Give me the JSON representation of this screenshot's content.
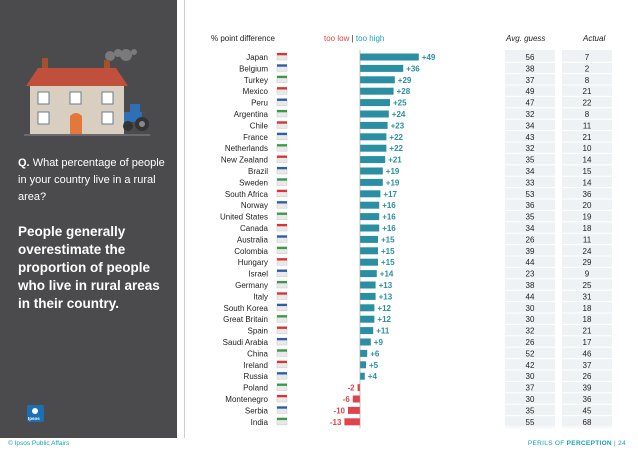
{
  "question": {
    "prefix": "Q.",
    "text": "What percentage of people in your country live in a rural area?"
  },
  "answer": "People generally overestimate the proportion of people who live in rural areas in their country.",
  "headers": {
    "pd": "% point difference",
    "low": "too low",
    "sep": "|",
    "high": "too high",
    "avg": "Avg. guess",
    "actual": "Actual"
  },
  "footer": {
    "left": "© Ipsos Public Affairs",
    "right_pre": "PERILS OF",
    "right_bold": "PERCEPTION",
    "page": "24"
  },
  "logo_text": "Ipsos",
  "colors": {
    "positive": "#2b8fa3",
    "negative": "#e2434b",
    "panel": "#4b4b4d",
    "accent": "#1aa0b8"
  },
  "chart_data": {
    "type": "bar",
    "title": "% point difference",
    "categories": [
      "Japan",
      "Belgium",
      "Turkey",
      "Mexico",
      "Peru",
      "Argentina",
      "Chile",
      "France",
      "Netherlands",
      "New Zealand",
      "Brazil",
      "Sweden",
      "South Africa",
      "Norway",
      "United States",
      "Canada",
      "Australia",
      "Colombia",
      "Hungary",
      "Israel",
      "Germany",
      "Italy",
      "South Korea",
      "Great Britain",
      "Spain",
      "Saudi Arabia",
      "China",
      "Ireland",
      "Russia",
      "Poland",
      "Montenegro",
      "Serbia",
      "India"
    ],
    "values": [
      49,
      36,
      29,
      28,
      25,
      24,
      23,
      22,
      22,
      21,
      19,
      19,
      17,
      16,
      16,
      16,
      15,
      15,
      15,
      14,
      13,
      13,
      12,
      12,
      11,
      9,
      6,
      5,
      4,
      -2,
      -6,
      -10,
      -13
    ],
    "labels": [
      "+49",
      "+36",
      "+29",
      "+28",
      "+25",
      "+24",
      "+23",
      "+22",
      "+22",
      "+21",
      "+19",
      "+19",
      "+17",
      "+16",
      "+16",
      "+16",
      "+15",
      "+15",
      "+15",
      "+14",
      "+13",
      "+13",
      "+12",
      "+12",
      "+11",
      "+9",
      "+6",
      "+5",
      "+4",
      "-2",
      "-6",
      "-10",
      "-13"
    ],
    "avg_guess": [
      56,
      38,
      37,
      49,
      47,
      32,
      34,
      43,
      32,
      35,
      34,
      33,
      53,
      36,
      35,
      34,
      26,
      39,
      44,
      23,
      38,
      44,
      30,
      30,
      32,
      26,
      52,
      42,
      30,
      37,
      30,
      35,
      55
    ],
    "actual": [
      7,
      2,
      8,
      21,
      22,
      8,
      11,
      21,
      10,
      14,
      15,
      14,
      36,
      20,
      19,
      18,
      11,
      24,
      29,
      9,
      25,
      31,
      18,
      18,
      21,
      17,
      46,
      37,
      26,
      39,
      36,
      45,
      68
    ]
  }
}
